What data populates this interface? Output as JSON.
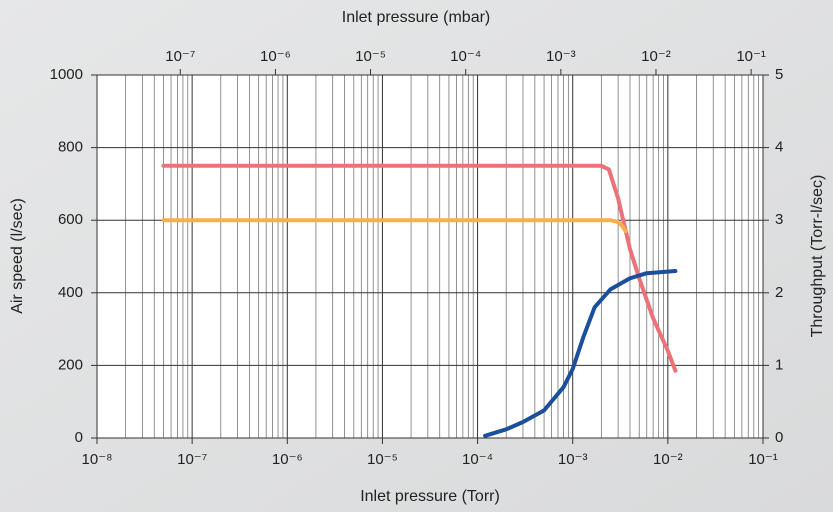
{
  "chart_data": {
    "type": "line",
    "xlabel": "Inlet pressure (Torr)",
    "x2label": "Inlet pressure (mbar)",
    "ylabel": "Air speed (l/sec)",
    "y2label": "Throughput (Torr-l/sec)",
    "xscale": "log",
    "grid": true,
    "xlim": [
      1e-08,
      0.1
    ],
    "xticks": [
      {
        "value": 1e-08,
        "label": "10⁻⁸"
      },
      {
        "value": 1e-07,
        "label": "10⁻⁷"
      },
      {
        "value": 1e-06,
        "label": "10⁻⁶"
      },
      {
        "value": 1e-05,
        "label": "10⁻⁵"
      },
      {
        "value": 0.0001,
        "label": "10⁻⁴"
      },
      {
        "value": 0.001,
        "label": "10⁻³"
      },
      {
        "value": 0.01,
        "label": "10⁻²"
      },
      {
        "value": 0.1,
        "label": "10⁻¹"
      }
    ],
    "x2lim": [
      1.333e-08,
      0.1333
    ],
    "x2ticks": [
      {
        "value": 1e-07,
        "label": "10⁻⁷"
      },
      {
        "value": 1e-06,
        "label": "10⁻⁶"
      },
      {
        "value": 1e-05,
        "label": "10⁻⁵"
      },
      {
        "value": 0.0001,
        "label": "10⁻⁴"
      },
      {
        "value": 0.001,
        "label": "10⁻³"
      },
      {
        "value": 0.01,
        "label": "10⁻²"
      },
      {
        "value": 0.1,
        "label": "10⁻¹"
      }
    ],
    "ylim": [
      0,
      1000
    ],
    "yticks": [
      0,
      200,
      400,
      600,
      800,
      1000
    ],
    "y2lim": [
      0,
      5
    ],
    "y2ticks": [
      0,
      1,
      2,
      3,
      4,
      5
    ],
    "series": [
      {
        "color": "#ec7278",
        "x": [
          5e-08,
          0.002,
          0.0024,
          0.003,
          0.004,
          0.005,
          0.007,
          0.01,
          0.012
        ],
        "values": [
          750,
          750,
          740,
          660,
          520,
          440,
          330,
          240,
          185
        ]
      },
      {
        "color": "#f7b04e",
        "x": [
          5e-08,
          0.0025,
          0.003,
          0.0033,
          0.0036
        ],
        "values": [
          600,
          600,
          595,
          585,
          570
        ]
      },
      {
        "color": "#1b4f9c",
        "axis": "y2",
        "x": [
          0.00012,
          0.0002,
          0.0003,
          0.0005,
          0.0008,
          0.001,
          0.0013,
          0.0017,
          0.0025,
          0.004,
          0.006,
          0.012
        ],
        "values": [
          0.03,
          0.12,
          0.22,
          0.38,
          0.7,
          0.95,
          1.4,
          1.8,
          2.05,
          2.2,
          2.27,
          2.3
        ]
      }
    ]
  }
}
